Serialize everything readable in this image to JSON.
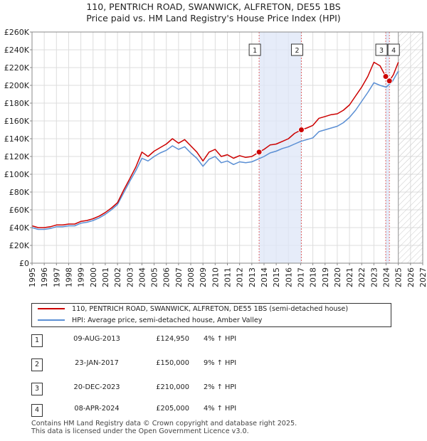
{
  "chart_data": {
    "type": "line",
    "title": "110, PENTRICH ROAD, SWANWICK, ALFRETON, DE55 1BS",
    "subtitle": "Price paid vs. HM Land Registry's House Price Index (HPI)",
    "xlim": [
      1995,
      2027
    ],
    "ylim": [
      0,
      260000
    ],
    "x_ticks": [
      "1995",
      "1996",
      "1997",
      "1998",
      "1999",
      "2000",
      "2001",
      "2002",
      "2003",
      "2004",
      "2005",
      "2006",
      "2007",
      "2008",
      "2009",
      "2010",
      "2011",
      "2012",
      "2013",
      "2014",
      "2015",
      "2016",
      "2017",
      "2018",
      "2019",
      "2020",
      "2021",
      "2022",
      "2023",
      "2024",
      "2025",
      "2026",
      "2027"
    ],
    "y_ticks": [
      {
        "value": 0,
        "label": "£0"
      },
      {
        "value": 20000,
        "label": "£20K"
      },
      {
        "value": 40000,
        "label": "£40K"
      },
      {
        "value": 60000,
        "label": "£60K"
      },
      {
        "value": 80000,
        "label": "£80K"
      },
      {
        "value": 100000,
        "label": "£100K"
      },
      {
        "value": 120000,
        "label": "£120K"
      },
      {
        "value": 140000,
        "label": "£140K"
      },
      {
        "value": 160000,
        "label": "£160K"
      },
      {
        "value": 180000,
        "label": "£180K"
      },
      {
        "value": 200000,
        "label": "£200K"
      },
      {
        "value": 220000,
        "label": "£220K"
      },
      {
        "value": 240000,
        "label": "£240K"
      },
      {
        "value": 260000,
        "label": "£260K"
      }
    ],
    "grid": true,
    "future_hatch_from": 2025.0,
    "highlight_range": [
      2013.6,
      2017.06
    ],
    "series": [
      {
        "name": "110, PENTRICH ROAD, SWANWICK, ALFRETON, DE55 1BS (semi-detached house)",
        "color": "#cc0000",
        "x": [
          1995.0,
          1995.5,
          1996.0,
          1996.5,
          1997.0,
          1997.5,
          1998.0,
          1998.5,
          1999.0,
          1999.5,
          2000.0,
          2000.5,
          2001.0,
          2001.5,
          2002.0,
          2002.5,
          2003.0,
          2003.5,
          2004.0,
          2004.5,
          2005.0,
          2005.5,
          2006.0,
          2006.5,
          2007.0,
          2007.5,
          2008.0,
          2008.5,
          2009.0,
          2009.5,
          2010.0,
          2010.5,
          2011.0,
          2011.5,
          2012.0,
          2012.5,
          2013.0,
          2013.6,
          2014.0,
          2014.5,
          2015.0,
          2015.5,
          2016.0,
          2016.5,
          2017.06,
          2017.5,
          2018.0,
          2018.5,
          2019.0,
          2019.5,
          2020.0,
          2020.5,
          2021.0,
          2021.5,
          2022.0,
          2022.5,
          2023.0,
          2023.5,
          2023.97,
          2024.27,
          2024.6,
          2025.0
        ],
        "y": [
          42000,
          40000,
          40000,
          41000,
          43000,
          43000,
          44000,
          44000,
          47000,
          48000,
          50000,
          53000,
          57000,
          62000,
          68000,
          82000,
          95000,
          108000,
          125000,
          120000,
          126000,
          130000,
          134000,
          140000,
          135000,
          139000,
          132000,
          125000,
          115000,
          125000,
          128000,
          120000,
          122000,
          118000,
          121000,
          119000,
          120000,
          125000,
          128000,
          133000,
          134000,
          137000,
          140000,
          146000,
          150000,
          152000,
          155000,
          163000,
          165000,
          167000,
          168000,
          172000,
          178000,
          188000,
          198000,
          210000,
          226000,
          222000,
          210000,
          205000,
          212000,
          226000
        ]
      },
      {
        "name": "HPI: Average price, semi-detached house, Amber Valley",
        "color": "#5b8fd4",
        "x": [
          1995.0,
          1995.5,
          1996.0,
          1996.5,
          1997.0,
          1997.5,
          1998.0,
          1998.5,
          1999.0,
          1999.5,
          2000.0,
          2000.5,
          2001.0,
          2001.5,
          2002.0,
          2002.5,
          2003.0,
          2003.5,
          2004.0,
          2004.5,
          2005.0,
          2005.5,
          2006.0,
          2006.5,
          2007.0,
          2007.5,
          2008.0,
          2008.5,
          2009.0,
          2009.5,
          2010.0,
          2010.5,
          2011.0,
          2011.5,
          2012.0,
          2012.5,
          2013.0,
          2013.5,
          2014.0,
          2014.5,
          2015.0,
          2015.5,
          2016.0,
          2016.5,
          2017.0,
          2017.5,
          2018.0,
          2018.5,
          2019.0,
          2019.5,
          2020.0,
          2020.5,
          2021.0,
          2021.5,
          2022.0,
          2022.5,
          2023.0,
          2023.5,
          2024.0,
          2024.5,
          2025.0
        ],
        "y": [
          40000,
          38000,
          38000,
          39000,
          41000,
          41000,
          42000,
          42000,
          45000,
          46000,
          48000,
          51000,
          55000,
          60000,
          66000,
          79000,
          92000,
          104000,
          118000,
          115000,
          120000,
          124000,
          127000,
          132000,
          128000,
          131000,
          124000,
          118000,
          109000,
          117000,
          120000,
          113000,
          115000,
          111000,
          114000,
          113000,
          114000,
          117000,
          120000,
          124000,
          126000,
          129000,
          131000,
          134000,
          137000,
          139000,
          141000,
          148000,
          150000,
          152000,
          154000,
          158000,
          164000,
          172000,
          182000,
          192000,
          203000,
          200000,
          198000,
          204000,
          216000
        ]
      }
    ],
    "sales": [
      {
        "num": "1",
        "x": 2013.6,
        "y": 124950
      },
      {
        "num": "2",
        "x": 2017.06,
        "y": 150000
      },
      {
        "num": "3",
        "x": 2023.97,
        "y": 210000
      },
      {
        "num": "4",
        "x": 2024.27,
        "y": 205000
      }
    ]
  },
  "legend": {
    "property_label": "110, PENTRICH ROAD, SWANWICK, ALFRETON, DE55 1BS (semi-detached house)",
    "hpi_label": "HPI: Average price, semi-detached house, Amber Valley"
  },
  "sales_table": [
    {
      "num": "1",
      "date": "09-AUG-2013",
      "price": "£124,950",
      "hpi": "4% ↑ HPI"
    },
    {
      "num": "2",
      "date": "23-JAN-2017",
      "price": "£150,000",
      "hpi": "9% ↑ HPI"
    },
    {
      "num": "3",
      "date": "20-DEC-2023",
      "price": "£210,000",
      "hpi": "2% ↑ HPI"
    },
    {
      "num": "4",
      "date": "08-APR-2024",
      "price": "£205,000",
      "hpi": "4% ↑ HPI"
    }
  ],
  "footer": {
    "line1": "Contains HM Land Registry data © Crown copyright and database right 2025.",
    "line2": "This data is licensed under the Open Government Licence v3.0."
  }
}
